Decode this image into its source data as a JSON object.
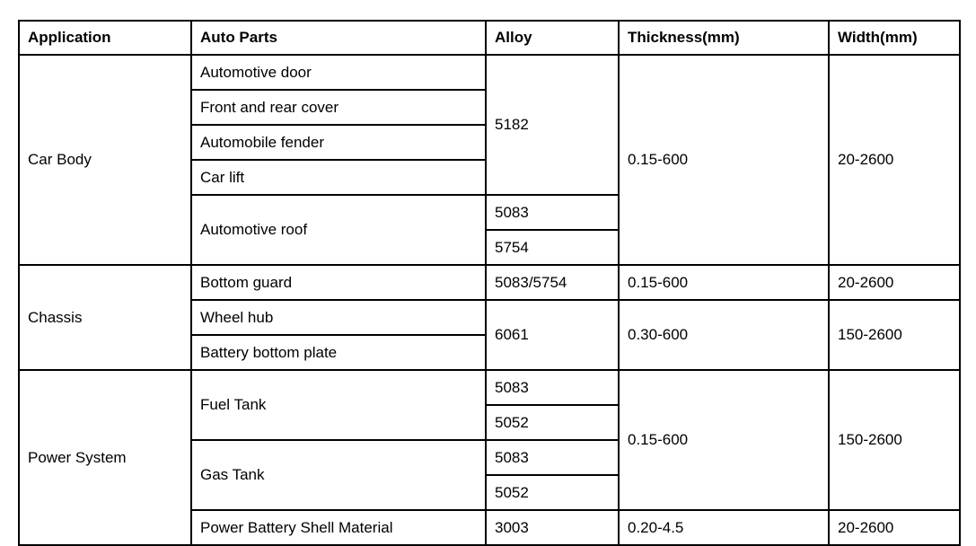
{
  "table": {
    "headers": [
      "Application",
      "Auto Parts",
      "Alloy",
      "Thickness(mm)",
      "Width(mm)"
    ],
    "car_body": {
      "application": "Car Body",
      "door": "Automotive door",
      "front_rear_cover": "Front and rear cover",
      "fender": "Automobile fender",
      "car_lift": "Car lift",
      "roof": "Automotive roof",
      "door_group_alloy": "5182",
      "roof_alloy_1": "5083",
      "roof_alloy_2": "5754",
      "thickness": "0.15-600",
      "width": "20-2600"
    },
    "chassis": {
      "application": "Chassis",
      "bottom_guard": "Bottom guard",
      "bottom_guard_alloy": "5083/5754",
      "bottom_guard_thickness": "0.15-600",
      "bottom_guard_width": "20-2600",
      "wheel_hub": "Wheel hub",
      "battery_bottom_plate": "Battery bottom plate",
      "hub_plate_alloy": "6061",
      "hub_plate_thickness": "0.30-600",
      "hub_plate_width": "150-2600"
    },
    "power_system": {
      "application": "Power System",
      "fuel_tank": "Fuel Tank",
      "fuel_tank_alloy_1": "5083",
      "fuel_tank_alloy_2": "5052",
      "gas_tank": "Gas Tank",
      "gas_tank_alloy_1": "5083",
      "gas_tank_alloy_2": "5052",
      "tanks_thickness": "0.15-600",
      "tanks_width": "150-2600",
      "shell": "Power Battery Shell Material",
      "shell_alloy": "3003",
      "shell_thickness": "0.20-4.5",
      "shell_width": "20-2600"
    }
  }
}
